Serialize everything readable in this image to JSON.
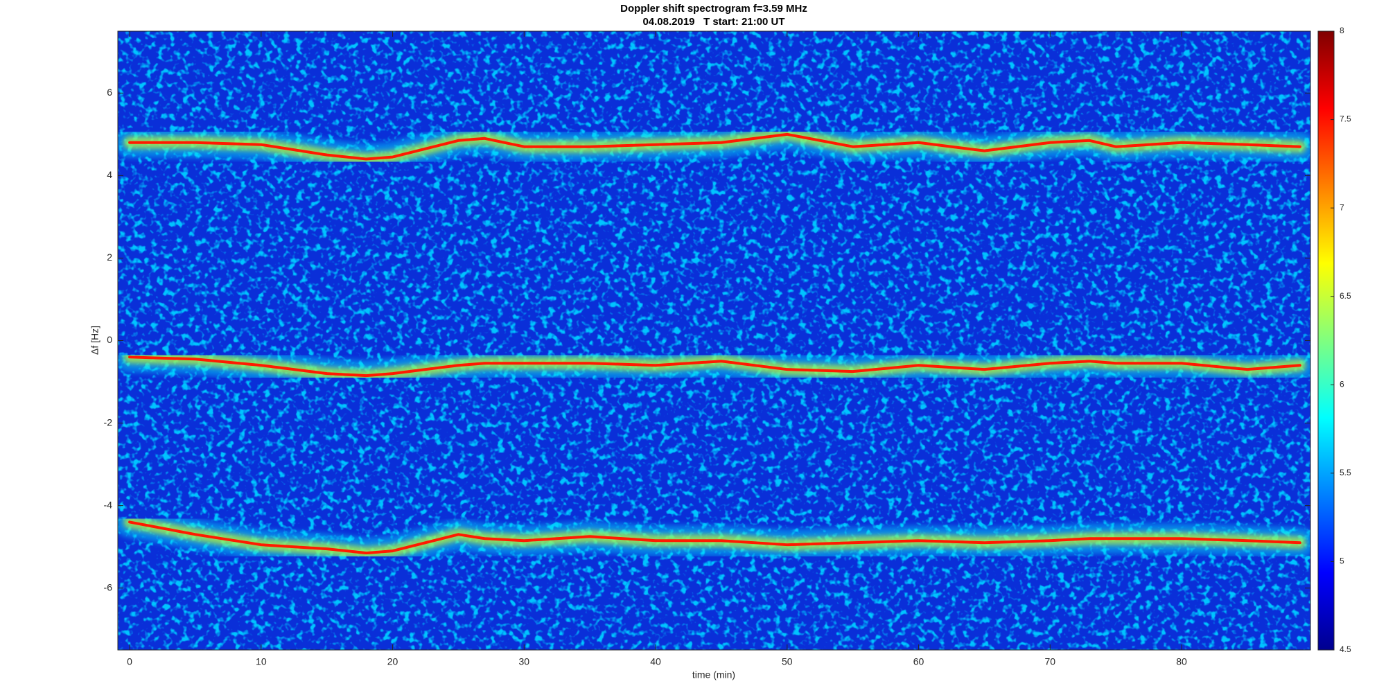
{
  "chart_data": {
    "type": "spectrogram",
    "title": "Doppler shift spectrogram f=3.59 MHz",
    "subtitle": "04.08.2019   T start: 21:00 UT",
    "x_label": "time (min)",
    "y_label": "Δf [Hz]",
    "x": [
      0,
      5,
      10,
      15,
      18,
      20,
      25,
      27,
      30,
      35,
      40,
      45,
      50,
      55,
      60,
      65,
      70,
      73,
      75,
      80,
      85,
      89
    ],
    "series": [
      {
        "color": "#ff1a00",
        "values": [
          4.8,
          4.8,
          4.75,
          4.5,
          4.4,
          4.45,
          4.85,
          4.9,
          4.7,
          4.7,
          4.75,
          4.8,
          5.0,
          4.7,
          4.8,
          4.6,
          4.8,
          4.85,
          4.7,
          4.8,
          4.75,
          4.7
        ]
      },
      {
        "color": "#ff1a00",
        "values": [
          -0.4,
          -0.45,
          -0.6,
          -0.8,
          -0.85,
          -0.8,
          -0.6,
          -0.55,
          -0.55,
          -0.55,
          -0.6,
          -0.5,
          -0.7,
          -0.75,
          -0.6,
          -0.7,
          -0.55,
          -0.5,
          -0.55,
          -0.55,
          -0.7,
          -0.6
        ]
      },
      {
        "color": "#ff1a00",
        "values": [
          -4.4,
          -4.7,
          -4.95,
          -5.05,
          -5.15,
          -5.1,
          -4.7,
          -4.8,
          -4.85,
          -4.75,
          -4.85,
          -4.85,
          -4.95,
          -4.9,
          -4.85,
          -4.9,
          -4.85,
          -4.8,
          -4.8,
          -4.8,
          -4.85,
          -4.9
        ]
      }
    ],
    "xlim": [
      -0.9,
      89.8
    ],
    "ylim": [
      -7.5,
      7.5
    ],
    "xticks": [
      0,
      10,
      20,
      30,
      40,
      50,
      60,
      70,
      80
    ],
    "yticks": [
      -6,
      -4,
      -2,
      0,
      2,
      4,
      6
    ],
    "colormap": "jet",
    "clim": [
      4.5,
      8
    ],
    "cticks": [
      4.5,
      5,
      5.5,
      6,
      6.5,
      7,
      7.5,
      8
    ]
  }
}
